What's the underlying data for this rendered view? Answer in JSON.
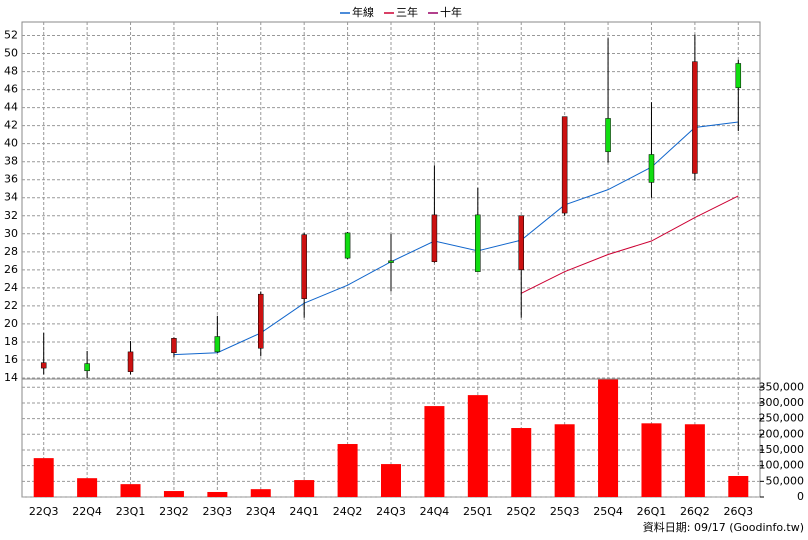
{
  "chart_data": [
    {
      "type": "candlestick",
      "categories": [
        "22Q3",
        "22Q4",
        "23Q1",
        "23Q2",
        "23Q3",
        "23Q4",
        "24Q1",
        "24Q2",
        "24Q3",
        "24Q4",
        "25Q1",
        "25Q2",
        "25Q3",
        "25Q4",
        "26Q1",
        "26Q2",
        "26Q3"
      ],
      "open": [
        15.1,
        15.6,
        14.7,
        16.8,
        18.6,
        17.3,
        22.8,
        30.1,
        27.0,
        26.9,
        32.1,
        26.0,
        32.3,
        42.8,
        38.8,
        36.7,
        48.9
      ],
      "high": [
        19.0,
        17.0,
        18.1,
        18.5,
        20.9,
        23.6,
        30.1,
        30.2,
        30.0,
        37.6,
        35.1,
        32.0,
        43.0,
        51.7,
        44.6,
        52.1,
        49.3
      ],
      "low": [
        14.4,
        14.0,
        14.4,
        16.3,
        16.8,
        16.4,
        20.7,
        27.2,
        23.6,
        26.8,
        25.8,
        20.7,
        32.0,
        37.9,
        34.0,
        35.9,
        41.4
      ],
      "close": [
        15.7,
        14.8,
        16.9,
        18.4,
        16.9,
        23.3,
        29.9,
        27.3,
        26.8,
        32.1,
        25.8,
        32.0,
        43.0,
        39.1,
        35.7,
        49.1,
        46.2
      ],
      "up_color": "#cc1111",
      "down_color": "#11dd11",
      "series": [
        {
          "name": "年線",
          "color": "#1166cc",
          "values": [
            null,
            null,
            null,
            16.6,
            16.8,
            19.0,
            22.3,
            24.3,
            26.9,
            29.2,
            28.1,
            29.3,
            33.2,
            34.9,
            37.4,
            41.8,
            42.4
          ]
        },
        {
          "name": "三年",
          "color": "#cc0033",
          "values": [
            null,
            null,
            null,
            null,
            null,
            null,
            null,
            null,
            null,
            null,
            null,
            23.4,
            25.8,
            27.7,
            29.2,
            31.8,
            34.2
          ]
        },
        {
          "name": "十年",
          "color": "#990066",
          "values": [
            null,
            null,
            null,
            null,
            null,
            null,
            null,
            null,
            null,
            null,
            null,
            null,
            null,
            null,
            null,
            null,
            null
          ]
        }
      ],
      "ylim": [
        14,
        53.5
      ],
      "yticks": [
        14,
        16,
        18,
        20,
        22,
        24,
        26,
        28,
        30,
        32,
        34,
        36,
        38,
        40,
        42,
        44,
        46,
        48,
        50,
        52
      ],
      "grid": true
    },
    {
      "type": "bar",
      "categories": [
        "22Q3",
        "22Q4",
        "23Q1",
        "23Q2",
        "23Q3",
        "23Q4",
        "24Q1",
        "24Q2",
        "24Q3",
        "24Q4",
        "25Q1",
        "25Q2",
        "25Q3",
        "25Q4",
        "26Q1",
        "26Q2",
        "26Q3"
      ],
      "values": [
        124000,
        60000,
        41000,
        19000,
        16000,
        25000,
        54000,
        169000,
        105000,
        290000,
        325000,
        220000,
        232000,
        375000,
        235000,
        232000,
        67000
      ],
      "color": "#ff0000",
      "ylim": [
        0,
        370000
      ],
      "yticks": [
        0,
        {
          "value": 50000,
          "label": "50,000"
        },
        {
          "value": 100000,
          "label": "100,000"
        },
        {
          "value": 150000,
          "label": "150,000"
        },
        {
          "value": 200000,
          "label": "200,000"
        },
        {
          "value": 250000,
          "label": "250,000"
        },
        {
          "value": 300000,
          "label": "300,000"
        },
        {
          "value": 350000,
          "label": "350,000"
        }
      ],
      "grid": true
    }
  ],
  "footer": "資料日期: 09/17  (Goodinfo.tw)"
}
